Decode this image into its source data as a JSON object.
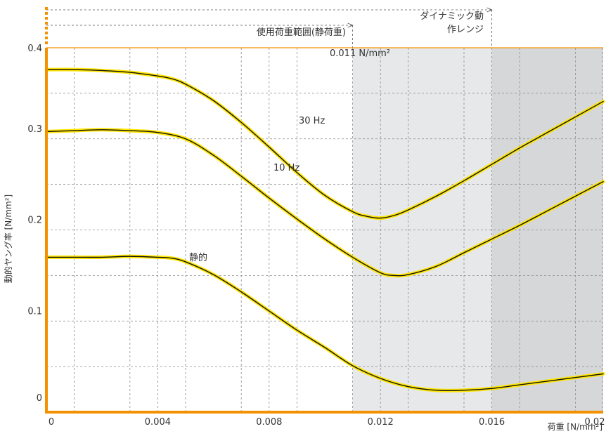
{
  "colors": {
    "axis": "#f39200",
    "curve_highlight": "#ffe600",
    "curve_line": "#111111",
    "static_range_shade": "#e6e8e9",
    "dynamic_range_shade": "#d5d7d9"
  },
  "annotations": {
    "static_range": "使用荷重範囲(静荷重)",
    "dynamic_range_line1": "ダイナミック動",
    "dynamic_range_line2": "作レンジ",
    "threshold": "0.011 N/mm²"
  },
  "chart_data": {
    "type": "line",
    "xlabel": "荷重 [N/mm²]",
    "ylabel": "動的ヤング率 [N/mm²]",
    "xlim": [
      0,
      0.02
    ],
    "ylim": [
      0,
      0.4
    ],
    "x_ticks": [
      {
        "value": 0,
        "label": "0"
      },
      {
        "value": 0.004,
        "label": "0.004"
      },
      {
        "value": 0.008,
        "label": "0.008"
      },
      {
        "value": 0.012,
        "label": "0.012"
      },
      {
        "value": 0.016,
        "label": "0.016"
      },
      {
        "value": 0.02,
        "label": "0.02"
      }
    ],
    "y_ticks": [
      {
        "value": 0,
        "label": "0"
      },
      {
        "value": 0.1,
        "label": "0.1"
      },
      {
        "value": 0.2,
        "label": "0.2"
      },
      {
        "value": 0.3,
        "label": "0.3"
      },
      {
        "value": 0.4,
        "label": "0.4"
      }
    ],
    "grid": true,
    "shaded_ranges": [
      {
        "from": 0.011,
        "to": 0.016,
        "kind": "static"
      },
      {
        "from": 0.016,
        "to": 0.02,
        "kind": "dynamic"
      }
    ],
    "series": [
      {
        "name": "30 Hz",
        "x": [
          0,
          0.001,
          0.002,
          0.003,
          0.004,
          0.0045,
          0.005,
          0.006,
          0.007,
          0.008,
          0.009,
          0.01,
          0.011,
          0.0115,
          0.012,
          0.0125,
          0.013,
          0.014,
          0.015,
          0.016,
          0.017,
          0.018,
          0.019,
          0.02
        ],
        "y": [
          0.376,
          0.376,
          0.375,
          0.373,
          0.369,
          0.366,
          0.36,
          0.342,
          0.318,
          0.291,
          0.263,
          0.238,
          0.22,
          0.215,
          0.213,
          0.216,
          0.222,
          0.237,
          0.254,
          0.272,
          0.29,
          0.307,
          0.324,
          0.341
        ]
      },
      {
        "name": "10 Hz",
        "x": [
          0,
          0.001,
          0.002,
          0.003,
          0.004,
          0.005,
          0.006,
          0.007,
          0.008,
          0.009,
          0.01,
          0.011,
          0.012,
          0.0125,
          0.013,
          0.014,
          0.015,
          0.016,
          0.017,
          0.018,
          0.019,
          0.02
        ],
        "y": [
          0.308,
          0.309,
          0.31,
          0.309,
          0.307,
          0.3,
          0.282,
          0.259,
          0.235,
          0.212,
          0.19,
          0.17,
          0.153,
          0.15,
          0.151,
          0.16,
          0.175,
          0.19,
          0.205,
          0.221,
          0.237,
          0.253
        ]
      },
      {
        "name": "静的",
        "x": [
          0,
          0.001,
          0.002,
          0.003,
          0.004,
          0.0045,
          0.005,
          0.006,
          0.007,
          0.008,
          0.009,
          0.01,
          0.011,
          0.012,
          0.013,
          0.014,
          0.015,
          0.016,
          0.017,
          0.018,
          0.019,
          0.02
        ],
        "y": [
          0.17,
          0.17,
          0.17,
          0.171,
          0.17,
          0.169,
          0.165,
          0.151,
          0.132,
          0.111,
          0.09,
          0.071,
          0.051,
          0.037,
          0.028,
          0.024,
          0.024,
          0.026,
          0.03,
          0.034,
          0.038,
          0.042
        ]
      }
    ]
  }
}
